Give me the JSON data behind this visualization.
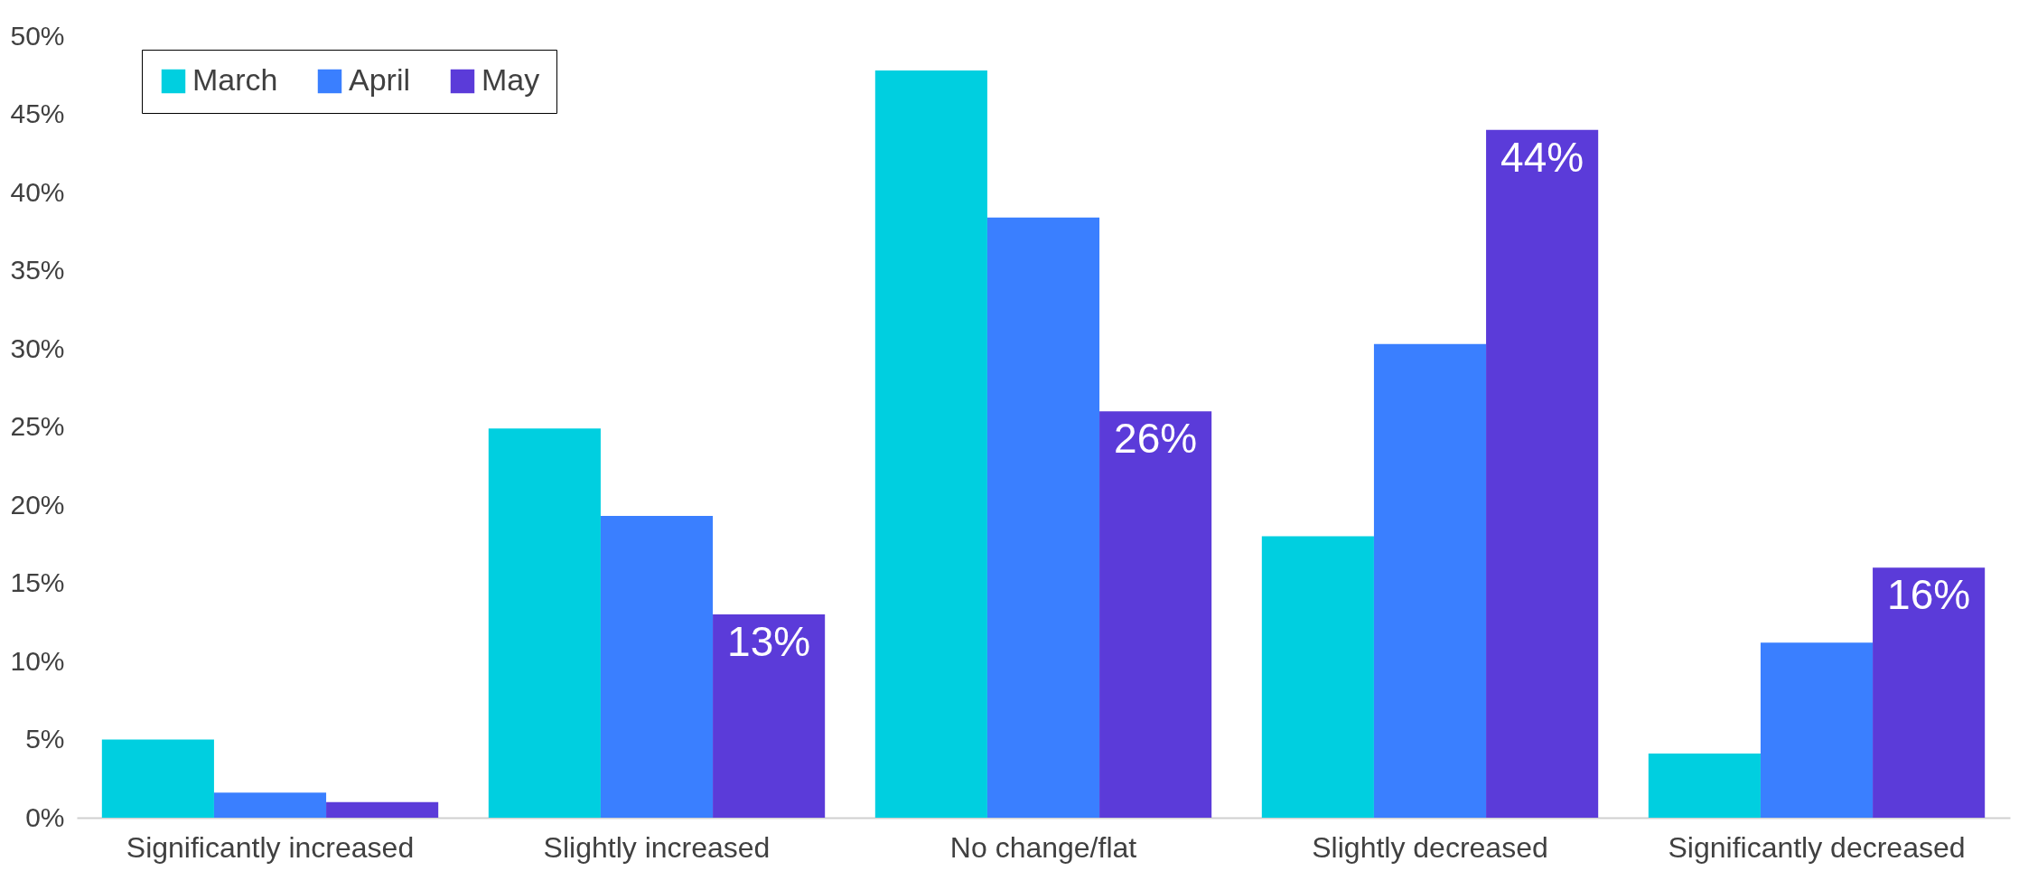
{
  "chart_data": {
    "type": "bar",
    "categories": [
      "Significantly increased",
      "Slightly increased",
      "No change/flat",
      "Slightly decreased",
      "Significantly decreased"
    ],
    "series": [
      {
        "name": "March",
        "color": "#00cfe0",
        "values": [
          5,
          24.9,
          47.8,
          18,
          4.1
        ]
      },
      {
        "name": "April",
        "color": "#3a7fff",
        "values": [
          1.6,
          19.3,
          38.4,
          30.3,
          11.2
        ]
      },
      {
        "name": "May",
        "color": "#5b3bd9",
        "values": [
          1,
          13,
          26,
          44,
          16
        ],
        "value_labels": [
          null,
          "13%",
          "26%",
          "44%",
          "16%"
        ]
      }
    ],
    "ylim": [
      0,
      50
    ],
    "yticks": [
      {
        "value": 0,
        "label": "0%"
      },
      {
        "value": 5,
        "label": "5%"
      },
      {
        "value": 10,
        "label": "10%"
      },
      {
        "value": 15,
        "label": "15%"
      },
      {
        "value": 20,
        "label": "20%"
      },
      {
        "value": 25,
        "label": "25%"
      },
      {
        "value": 30,
        "label": "30%"
      },
      {
        "value": 35,
        "label": "35%"
      },
      {
        "value": 40,
        "label": "40%"
      },
      {
        "value": 45,
        "label": "45%"
      },
      {
        "value": 50,
        "label": "50%"
      }
    ],
    "grid": false,
    "legend": "top left"
  }
}
